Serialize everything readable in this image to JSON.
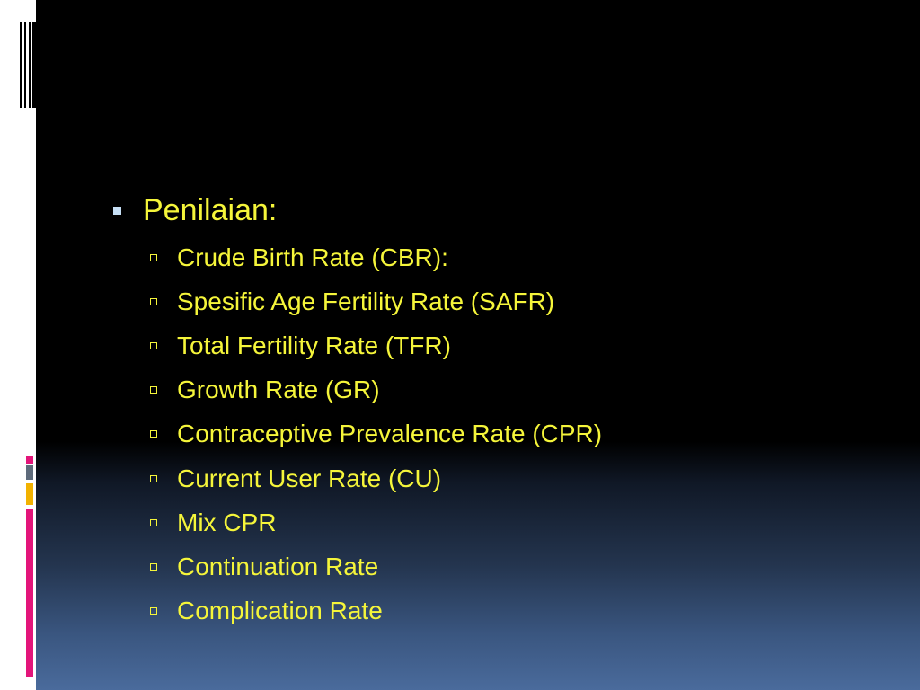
{
  "slide": {
    "heading": "Penilaian:",
    "items": [
      "Crude Birth Rate (CBR):",
      "Spesific Age Fertility Rate (SAFR)",
      "Total Fertility Rate (TFR)",
      "Growth Rate (GR)",
      "Contraceptive Prevalence Rate (CPR)",
      "Current User Rate (CU)",
      "Mix CPR",
      "Continuation Rate",
      "Complication Rate"
    ]
  },
  "colors": {
    "text": "#f5f53a",
    "bullet_primary": "#c6dff5",
    "accent_pink": "#e3157a",
    "accent_gold": "#f2b200",
    "accent_gray": "#5e6b7b"
  }
}
